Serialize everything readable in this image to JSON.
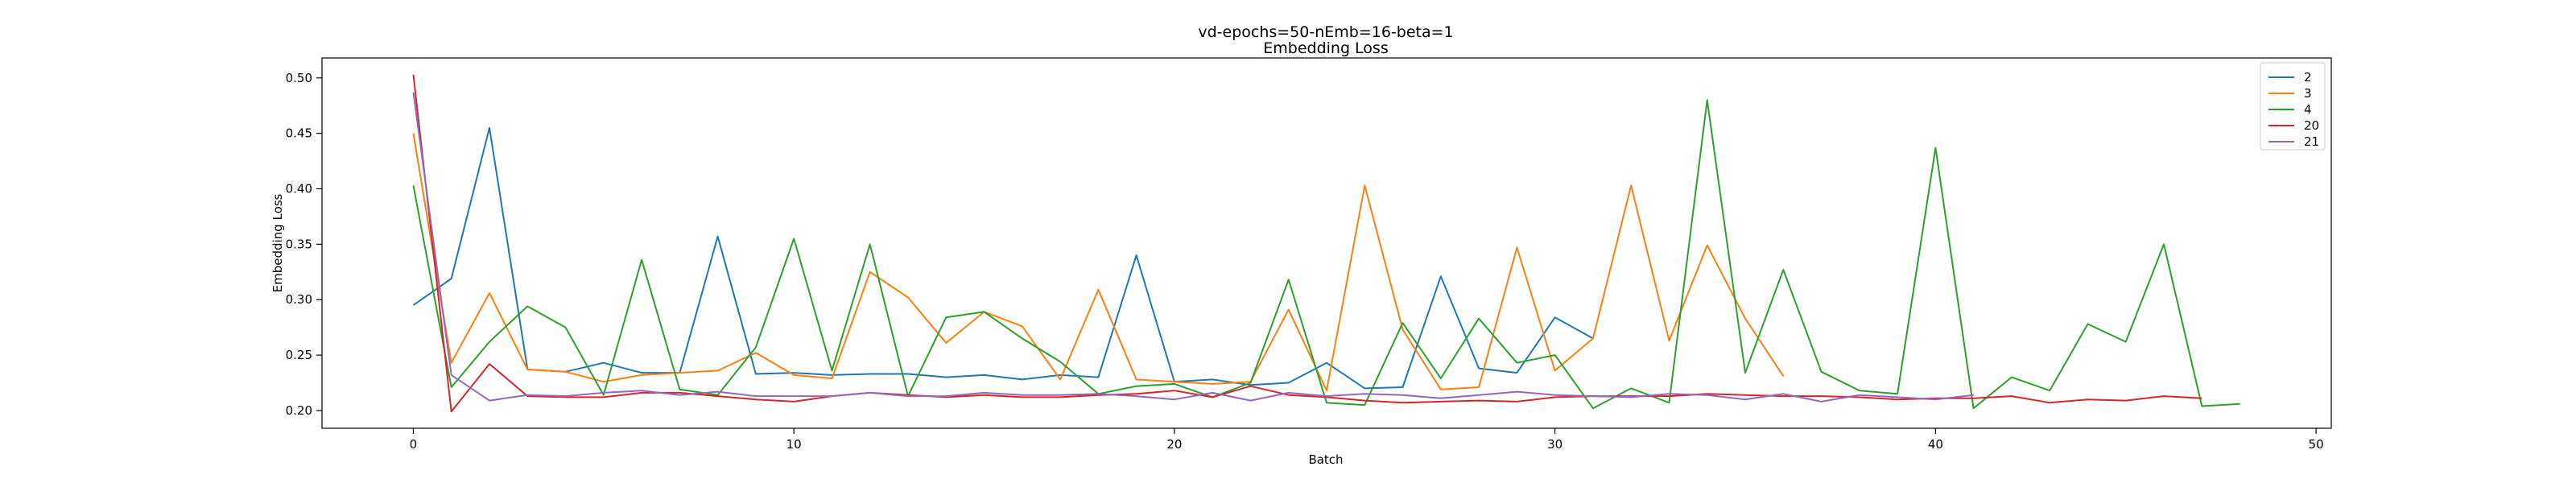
{
  "chart_data": {
    "type": "line",
    "title": "vd-epochs=50-nEmb=16-beta=1",
    "subtitle": "Embedding Loss",
    "xlabel": "Batch",
    "ylabel": "Embedding Loss",
    "xlim": [
      -2.4,
      50.4
    ],
    "ylim": [
      0.184,
      0.518
    ],
    "xticks": [
      0,
      10,
      20,
      30,
      40,
      50
    ],
    "yticks": [
      0.2,
      0.25,
      0.3,
      0.35,
      0.4,
      0.45,
      0.5
    ],
    "ytick_labels": [
      "0.20",
      "0.25",
      "0.30",
      "0.35",
      "0.40",
      "0.45",
      "0.50"
    ],
    "grid": false,
    "legend_position": "top-right",
    "series": [
      {
        "name": "2",
        "color": "#1f77b4",
        "values": [
          0.295,
          0.319,
          0.455,
          0.237,
          0.235,
          0.243,
          0.234,
          0.234,
          0.357,
          0.233,
          0.234,
          0.232,
          0.233,
          0.233,
          0.23,
          0.232,
          0.228,
          0.232,
          0.23,
          0.34,
          0.226,
          0.228,
          0.223,
          0.225,
          0.243,
          0.22,
          0.221,
          0.321,
          0.238,
          0.234,
          0.284,
          0.265
        ]
      },
      {
        "name": "3",
        "color": "#ff7f0e",
        "values": [
          0.45,
          0.243,
          0.306,
          0.237,
          0.235,
          0.226,
          0.232,
          0.234,
          0.236,
          0.252,
          0.232,
          0.229,
          0.325,
          0.302,
          0.261,
          0.289,
          0.276,
          0.228,
          0.309,
          0.228,
          0.226,
          0.224,
          0.226,
          0.291,
          0.218,
          0.403,
          0.273,
          0.219,
          0.221,
          0.347,
          0.236,
          0.265,
          0.403,
          0.263,
          0.349,
          0.283,
          0.231
        ]
      },
      {
        "name": "4",
        "color": "#2ca02c",
        "values": [
          0.403,
          0.221,
          0.262,
          0.294,
          0.275,
          0.214,
          0.336,
          0.219,
          0.214,
          0.257,
          0.355,
          0.236,
          0.35,
          0.213,
          0.284,
          0.289,
          0.265,
          0.244,
          0.215,
          0.222,
          0.224,
          0.212,
          0.225,
          0.318,
          0.207,
          0.205,
          0.279,
          0.229,
          0.283,
          0.243,
          0.25,
          0.202,
          0.22,
          0.207,
          0.48,
          0.234,
          0.327,
          0.235,
          0.218,
          0.215,
          0.437,
          0.202,
          0.23,
          0.218,
          0.278,
          0.262,
          0.35,
          0.204,
          0.206
        ]
      },
      {
        "name": "20",
        "color": "#d62728",
        "values": [
          0.503,
          0.199,
          0.242,
          0.213,
          0.212,
          0.212,
          0.216,
          0.216,
          0.213,
          0.21,
          0.208,
          0.213,
          0.216,
          0.214,
          0.212,
          0.214,
          0.212,
          0.212,
          0.214,
          0.215,
          0.218,
          0.212,
          0.222,
          0.214,
          0.212,
          0.209,
          0.207,
          0.208,
          0.209,
          0.208,
          0.212,
          0.213,
          0.213,
          0.213,
          0.215,
          0.214,
          0.213,
          0.213,
          0.212,
          0.21,
          0.211,
          0.211,
          0.213,
          0.207,
          0.21,
          0.209,
          0.213,
          0.211
        ]
      },
      {
        "name": "21",
        "color": "#9467bd",
        "values": [
          0.487,
          0.232,
          0.209,
          0.214,
          0.213,
          0.216,
          0.218,
          0.214,
          0.217,
          0.213,
          0.213,
          0.213,
          0.216,
          0.213,
          0.213,
          0.216,
          0.214,
          0.214,
          0.215,
          0.213,
          0.21,
          0.216,
          0.209,
          0.216,
          0.213,
          0.215,
          0.214,
          0.211,
          0.214,
          0.217,
          0.214,
          0.213,
          0.212,
          0.215,
          0.214,
          0.21,
          0.215,
          0.208,
          0.214,
          0.212,
          0.21,
          0.214
        ]
      }
    ]
  }
}
